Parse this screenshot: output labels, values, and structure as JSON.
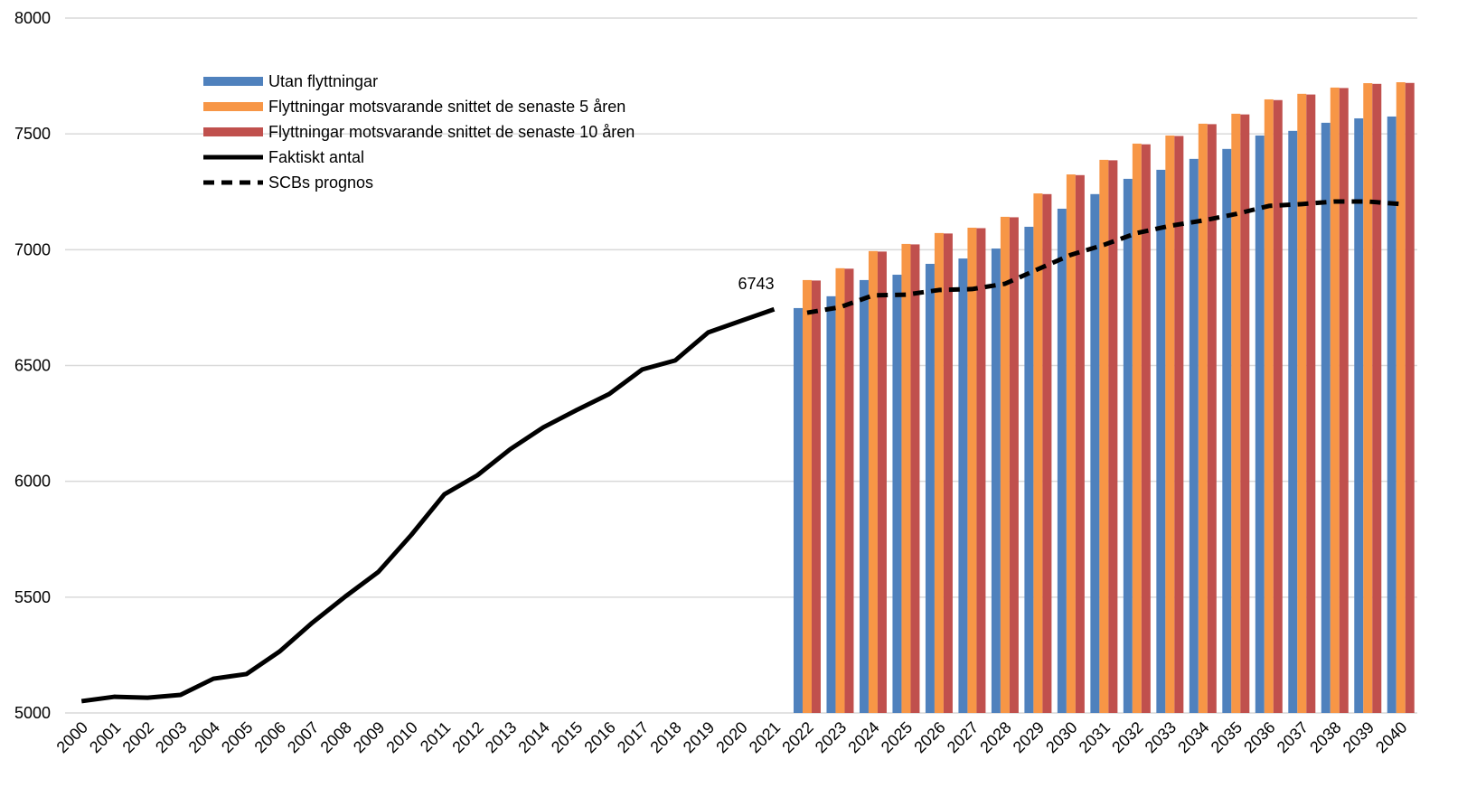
{
  "chart_data": {
    "type": "bar",
    "categories": [
      "2000",
      "2001",
      "2002",
      "2003",
      "2004",
      "2005",
      "2006",
      "2007",
      "2008",
      "2009",
      "2010",
      "2011",
      "2012",
      "2013",
      "2014",
      "2015",
      "2016",
      "2017",
      "2018",
      "2019",
      "2020",
      "2021",
      "2022",
      "2023",
      "2024",
      "2025",
      "2026",
      "2027",
      "2028",
      "2029",
      "2030",
      "2031",
      "2032",
      "2033",
      "2034",
      "2035",
      "2036",
      "2037",
      "2038",
      "2039",
      "2040"
    ],
    "ylim": [
      5000,
      8000
    ],
    "yticks": [
      5000,
      5500,
      6000,
      6500,
      7000,
      7500,
      8000
    ],
    "grid": true,
    "series": [
      {
        "name": "Utan flyttningar",
        "type": "bar",
        "color": "#4f81bd",
        "values": [
          null,
          null,
          null,
          null,
          null,
          null,
          null,
          null,
          null,
          null,
          null,
          null,
          null,
          null,
          null,
          null,
          null,
          null,
          null,
          null,
          null,
          null,
          6748,
          6799,
          6869,
          6892,
          6939,
          6962,
          7005,
          7099,
          7177,
          7240,
          7306,
          7345,
          7392,
          7435,
          7493,
          7513,
          7548,
          7567,
          7575
        ]
      },
      {
        "name": "Flyttningar motsvarande snittet de senaste 5 åren",
        "type": "bar",
        "color": "#f79646",
        "values": [
          null,
          null,
          null,
          null,
          null,
          null,
          null,
          null,
          null,
          null,
          null,
          null,
          null,
          null,
          null,
          null,
          null,
          null,
          null,
          null,
          null,
          null,
          6869,
          6920,
          6994,
          7025,
          7072,
          7095,
          7142,
          7243,
          7325,
          7388,
          7458,
          7493,
          7544,
          7587,
          7649,
          7673,
          7700,
          7719,
          7723
        ]
      },
      {
        "name": "Flyttningar motsvarande snittet de senaste 10 åren",
        "type": "bar",
        "color": "#c0504d",
        "values": [
          null,
          null,
          null,
          null,
          null,
          null,
          null,
          null,
          null,
          null,
          null,
          null,
          null,
          null,
          null,
          null,
          null,
          null,
          null,
          null,
          null,
          null,
          6867,
          6918,
          6992,
          7023,
          7070,
          7093,
          7140,
          7240,
          7322,
          7386,
          7455,
          7491,
          7542,
          7584,
          7646,
          7670,
          7698,
          7716,
          7720
        ]
      },
      {
        "name": "Faktiskt antal",
        "type": "line",
        "color": "#000000",
        "dashed": false,
        "values": [
          5051,
          5070,
          5066,
          5078,
          5148,
          5168,
          5265,
          5390,
          5503,
          5609,
          5769,
          5944,
          6026,
          6139,
          6233,
          6307,
          6377,
          6483,
          6522,
          6643,
          6693,
          6743,
          null,
          null,
          null,
          null,
          null,
          null,
          null,
          null,
          null,
          null,
          null,
          null,
          null,
          null,
          null,
          null,
          null,
          null,
          null
        ]
      },
      {
        "name": "SCBs prognos",
        "type": "line",
        "color": "#000000",
        "dashed": true,
        "values": [
          null,
          null,
          null,
          null,
          null,
          null,
          null,
          null,
          null,
          null,
          null,
          null,
          null,
          null,
          null,
          null,
          null,
          null,
          null,
          null,
          null,
          null,
          6728,
          6752,
          6803,
          6806,
          6826,
          6830,
          6853,
          6916,
          6978,
          7021,
          7072,
          7103,
          7126,
          7154,
          7189,
          7197,
          7208,
          7208,
          7197
        ]
      }
    ],
    "value_label_points": [
      {
        "series": 3,
        "index": 21
      }
    ]
  }
}
